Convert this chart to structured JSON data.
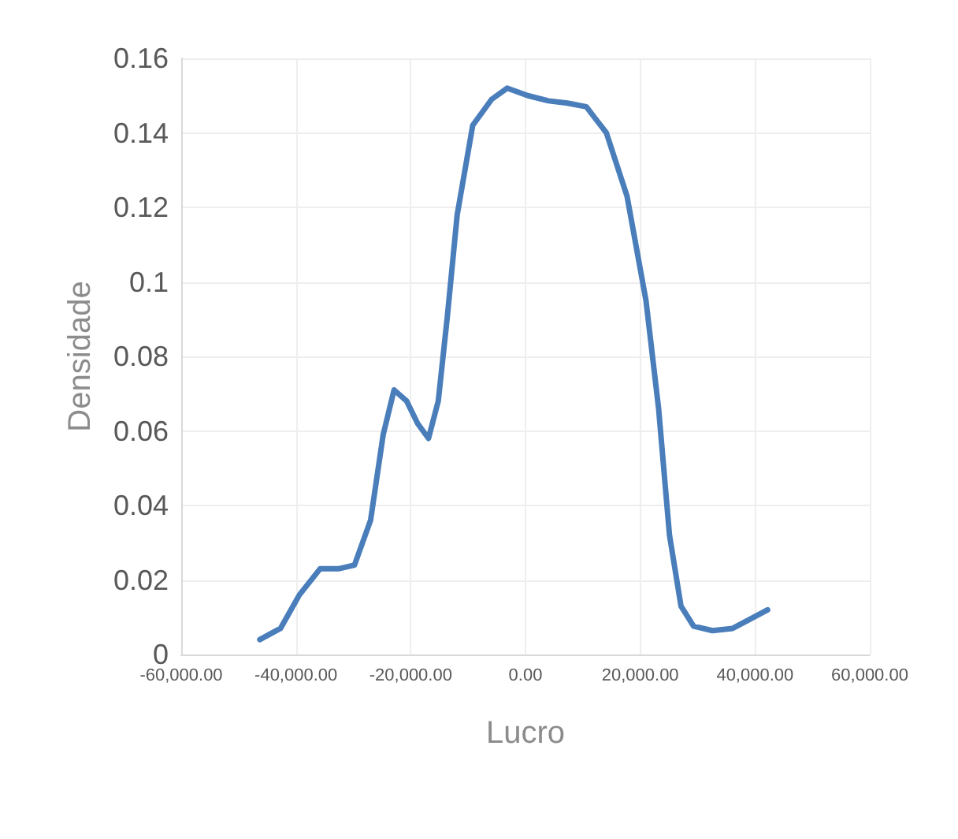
{
  "chart_data": {
    "type": "line",
    "xlabel": "Lucro",
    "ylabel": "Densidade",
    "series": [
      {
        "color": "#4a7ebb",
        "x": [
          -46300,
          -42700,
          -39400,
          -35800,
          -32600,
          -29800,
          -27000,
          -24800,
          -22900,
          -20700,
          -18800,
          -16900,
          -15200,
          -13600,
          -11900,
          -9200,
          -5900,
          -3200,
          400,
          4000,
          7300,
          10600,
          14100,
          17700,
          21000,
          23200,
          25100,
          27100,
          29300,
          32600,
          36100,
          38900,
          42200
        ],
        "values": [
          0.004,
          0.007,
          0.016,
          0.023,
          0.023,
          0.024,
          0.036,
          0.059,
          0.071,
          0.068,
          0.062,
          0.058,
          0.068,
          0.091,
          0.118,
          0.142,
          0.149,
          0.152,
          0.15,
          0.1486,
          0.148,
          0.147,
          0.14,
          0.123,
          0.095,
          0.066,
          0.032,
          0.013,
          0.0076,
          0.0064,
          0.007,
          0.0093,
          0.012
        ]
      }
    ],
    "xlim": [
      -60000,
      60000
    ],
    "xticks": [
      {
        "value": -60000,
        "label": "-60,000.00"
      },
      {
        "value": -40000,
        "label": "-40,000.00"
      },
      {
        "value": -20000,
        "label": "-20,000.00"
      },
      {
        "value": 0,
        "label": "0.00"
      },
      {
        "value": 20000,
        "label": "20,000.00"
      },
      {
        "value": 40000,
        "label": "40,000.00"
      },
      {
        "value": 60000,
        "label": "60,000.00"
      }
    ],
    "ylim": [
      0,
      0.16
    ],
    "yticks": [
      0,
      0.02,
      0.04,
      0.06,
      0.08,
      0.1,
      0.12,
      0.14,
      0.16
    ],
    "grid": true,
    "marker": "none",
    "line_style": "solid"
  }
}
